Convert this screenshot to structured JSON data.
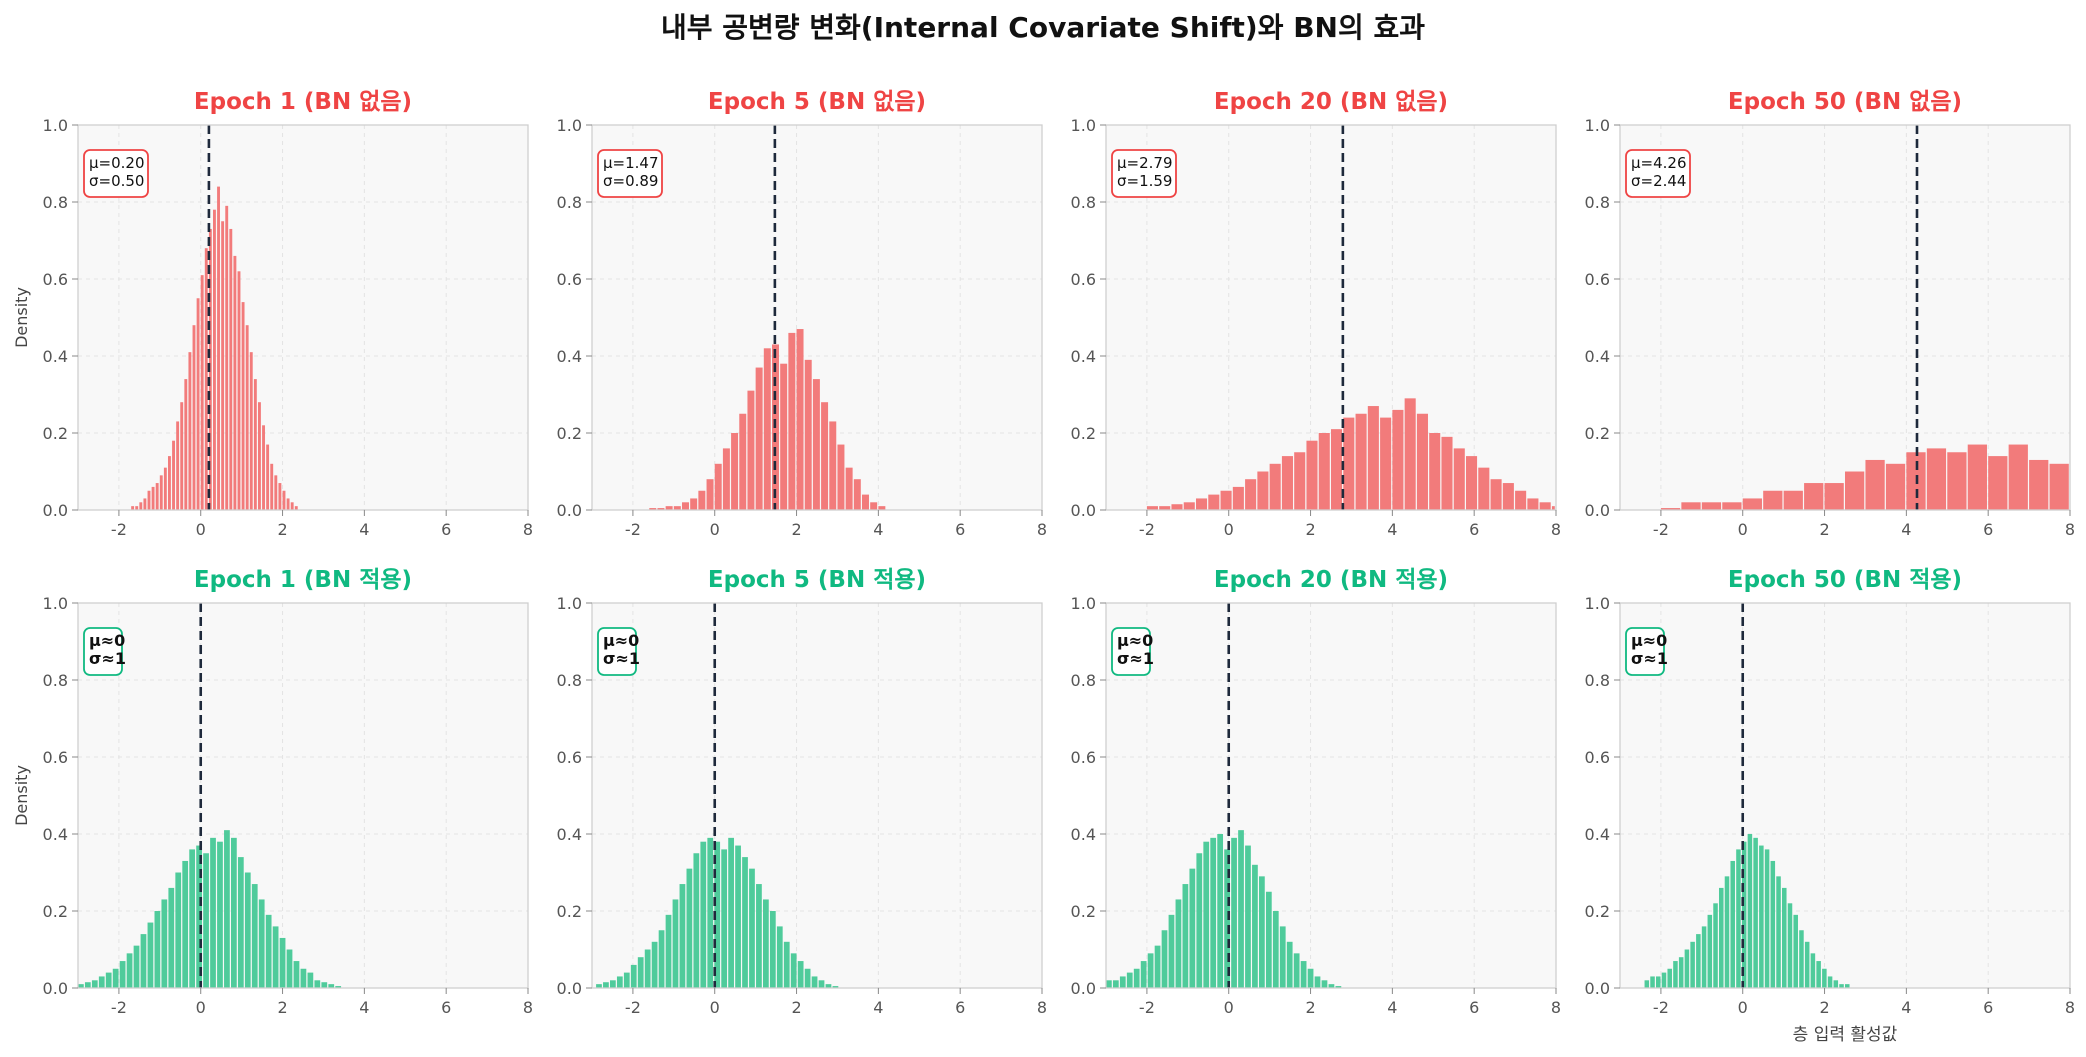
{
  "figure": {
    "title": "내부 공변량 변화(Internal Covariate Shift)와 BN의 효과"
  },
  "colors": {
    "no_bn": "#ef4444",
    "no_bn_bar": "#f27b7b",
    "bn": "#10b981",
    "bn_bar": "#4fcb9b",
    "mean_line": "#1e293b",
    "panel_bg": "#f8f8f8"
  },
  "chart_data": [
    {
      "type": "bar",
      "title": "Epoch 1 (BN 없음)",
      "ylabel": "Density",
      "xlabel": "",
      "annotation": [
        "μ=0.20",
        "σ=0.50"
      ],
      "mean_line_x": 0.2,
      "xlim": [
        -3,
        8
      ],
      "ylim": [
        0,
        1.0
      ],
      "xticks": [
        "-2",
        "0",
        "2",
        "4",
        "6",
        "8"
      ],
      "yticks": [
        "0.0",
        "0.2",
        "0.4",
        "0.6",
        "0.8",
        "1.0"
      ],
      "bins": {
        "start": -1.7,
        "width": 0.1,
        "values": [
          0.01,
          0.01,
          0.02,
          0.03,
          0.05,
          0.06,
          0.07,
          0.09,
          0.11,
          0.14,
          0.18,
          0.23,
          0.28,
          0.34,
          0.41,
          0.48,
          0.55,
          0.61,
          0.68,
          0.73,
          0.78,
          0.84,
          0.75,
          0.79,
          0.73,
          0.66,
          0.62,
          0.54,
          0.48,
          0.41,
          0.34,
          0.28,
          0.22,
          0.17,
          0.12,
          0.09,
          0.07,
          0.05,
          0.03,
          0.02,
          0.01
        ]
      }
    },
    {
      "type": "bar",
      "title": "Epoch 5 (BN 없음)",
      "ylabel": "",
      "xlabel": "",
      "annotation": [
        "μ=1.47",
        "σ=0.89"
      ],
      "mean_line_x": 1.47,
      "xlim": [
        -3,
        8
      ],
      "ylim": [
        0,
        1.0
      ],
      "xticks": [
        "-2",
        "0",
        "2",
        "4",
        "6",
        "8"
      ],
      "yticks": [
        "0.0",
        "0.2",
        "0.4",
        "0.6",
        "0.8",
        "1.0"
      ],
      "bins": {
        "start": -1.6,
        "width": 0.2,
        "values": [
          0.005,
          0.005,
          0.01,
          0.01,
          0.02,
          0.03,
          0.05,
          0.08,
          0.12,
          0.16,
          0.2,
          0.25,
          0.31,
          0.37,
          0.42,
          0.43,
          0.38,
          0.46,
          0.47,
          0.39,
          0.34,
          0.28,
          0.23,
          0.17,
          0.11,
          0.08,
          0.04,
          0.02,
          0.01
        ]
      }
    },
    {
      "type": "bar",
      "title": "Epoch 20 (BN 없음)",
      "ylabel": "",
      "xlabel": "",
      "annotation": [
        "μ=2.79",
        "σ=1.59"
      ],
      "mean_line_x": 2.79,
      "xlim": [
        -3,
        8
      ],
      "ylim": [
        0,
        1.0
      ],
      "xticks": [
        "-2",
        "0",
        "2",
        "4",
        "6",
        "8"
      ],
      "yticks": [
        "0.0",
        "0.2",
        "0.4",
        "0.6",
        "0.8",
        "1.0"
      ],
      "bins": {
        "start": -2.0,
        "width": 0.3,
        "values": [
          0.01,
          0.01,
          0.015,
          0.02,
          0.03,
          0.04,
          0.05,
          0.06,
          0.08,
          0.1,
          0.12,
          0.14,
          0.15,
          0.18,
          0.2,
          0.21,
          0.24,
          0.25,
          0.27,
          0.24,
          0.26,
          0.29,
          0.25,
          0.2,
          0.19,
          0.16,
          0.14,
          0.11,
          0.08,
          0.07,
          0.05,
          0.03,
          0.02,
          0.01,
          0.01
        ]
      }
    },
    {
      "type": "bar",
      "title": "Epoch 50 (BN 없음)",
      "ylabel": "",
      "xlabel": "",
      "annotation": [
        "μ=4.26",
        "σ=2.44"
      ],
      "mean_line_x": 4.26,
      "xlim": [
        -3,
        8
      ],
      "ylim": [
        0,
        1.0
      ],
      "xticks": [
        "-2",
        "0",
        "2",
        "4",
        "6",
        "8"
      ],
      "yticks": [
        "0.0",
        "0.2",
        "0.4",
        "0.6",
        "0.8",
        "1.0"
      ],
      "bins": {
        "start": -2.0,
        "width": 0.5,
        "values": [
          0.005,
          0.02,
          0.02,
          0.02,
          0.03,
          0.05,
          0.05,
          0.07,
          0.07,
          0.1,
          0.13,
          0.12,
          0.15,
          0.16,
          0.15,
          0.17,
          0.14,
          0.17,
          0.13,
          0.12,
          0.13,
          0.1,
          0.08,
          0.07
        ]
      }
    },
    {
      "type": "bar",
      "title": "Epoch 1 (BN 적용)",
      "ylabel": "Density",
      "xlabel": "",
      "annotation": [
        "μ≈0",
        "σ≈1"
      ],
      "mean_line_x": 0,
      "xlim": [
        -3,
        8
      ],
      "ylim": [
        0,
        1.0
      ],
      "xticks": [
        "-2",
        "0",
        "2",
        "4",
        "6",
        "8"
      ],
      "yticks": [
        "0.0",
        "0.2",
        "0.4",
        "0.6",
        "0.8",
        "1.0"
      ],
      "bins": {
        "start": -3.0,
        "width": 0.17,
        "values": [
          0.01,
          0.015,
          0.02,
          0.03,
          0.04,
          0.05,
          0.07,
          0.09,
          0.11,
          0.14,
          0.17,
          0.2,
          0.23,
          0.26,
          0.3,
          0.33,
          0.36,
          0.37,
          0.35,
          0.39,
          0.38,
          0.41,
          0.39,
          0.34,
          0.3,
          0.27,
          0.23,
          0.19,
          0.16,
          0.13,
          0.1,
          0.07,
          0.05,
          0.04,
          0.02,
          0.015,
          0.01,
          0.005
        ]
      }
    },
    {
      "type": "bar",
      "title": "Epoch 5 (BN 적용)",
      "ylabel": "",
      "xlabel": "",
      "annotation": [
        "μ≈0",
        "σ≈1"
      ],
      "mean_line_x": 0,
      "xlim": [
        -3,
        8
      ],
      "ylim": [
        0,
        1.0
      ],
      "xticks": [
        "-2",
        "0",
        "2",
        "4",
        "6",
        "8"
      ],
      "yticks": [
        "0.0",
        "0.2",
        "0.4",
        "0.6",
        "0.8",
        "1.0"
      ],
      "bins": {
        "start": -2.9,
        "width": 0.17,
        "values": [
          0.01,
          0.015,
          0.02,
          0.03,
          0.04,
          0.06,
          0.08,
          0.1,
          0.12,
          0.15,
          0.19,
          0.23,
          0.27,
          0.31,
          0.35,
          0.38,
          0.39,
          0.38,
          0.36,
          0.39,
          0.37,
          0.34,
          0.31,
          0.27,
          0.23,
          0.2,
          0.16,
          0.12,
          0.09,
          0.07,
          0.05,
          0.03,
          0.02,
          0.01,
          0.005
        ]
      }
    },
    {
      "type": "bar",
      "title": "Epoch 20 (BN 적용)",
      "ylabel": "",
      "xlabel": "",
      "annotation": [
        "μ≈0",
        "σ≈1"
      ],
      "mean_line_x": 0,
      "xlim": [
        -3,
        8
      ],
      "ylim": [
        0,
        1.0
      ],
      "xticks": [
        "-2",
        "0",
        "2",
        "4",
        "6",
        "8"
      ],
      "yticks": [
        "0.0",
        "0.2",
        "0.4",
        "0.6",
        "0.8",
        "1.0"
      ],
      "bins": {
        "start": -3.0,
        "width": 0.17,
        "values": [
          0.02,
          0.02,
          0.03,
          0.04,
          0.05,
          0.07,
          0.09,
          0.11,
          0.15,
          0.19,
          0.23,
          0.27,
          0.31,
          0.35,
          0.38,
          0.39,
          0.4,
          0.36,
          0.39,
          0.41,
          0.37,
          0.32,
          0.29,
          0.25,
          0.2,
          0.16,
          0.12,
          0.09,
          0.07,
          0.05,
          0.03,
          0.02,
          0.01,
          0.005
        ]
      }
    },
    {
      "type": "bar",
      "title": "Epoch 50 (BN 적용)",
      "ylabel": "",
      "xlabel": "층 입력 활성값",
      "annotation": [
        "μ≈0",
        "σ≈1"
      ],
      "mean_line_x": 0,
      "xlim": [
        -3,
        8
      ],
      "ylim": [
        0,
        1.0
      ],
      "xticks": [
        "-2",
        "0",
        "2",
        "4",
        "6",
        "8"
      ],
      "yticks": [
        "0.0",
        "0.2",
        "0.4",
        "0.6",
        "0.8",
        "1.0"
      ],
      "bins": {
        "start": -2.4,
        "width": 0.14,
        "values": [
          0.02,
          0.03,
          0.03,
          0.04,
          0.05,
          0.07,
          0.08,
          0.1,
          0.12,
          0.14,
          0.16,
          0.19,
          0.22,
          0.26,
          0.29,
          0.33,
          0.36,
          0.38,
          0.4,
          0.39,
          0.37,
          0.36,
          0.33,
          0.29,
          0.26,
          0.22,
          0.19,
          0.15,
          0.12,
          0.09,
          0.07,
          0.05,
          0.03,
          0.02,
          0.01,
          0.01
        ]
      }
    }
  ]
}
